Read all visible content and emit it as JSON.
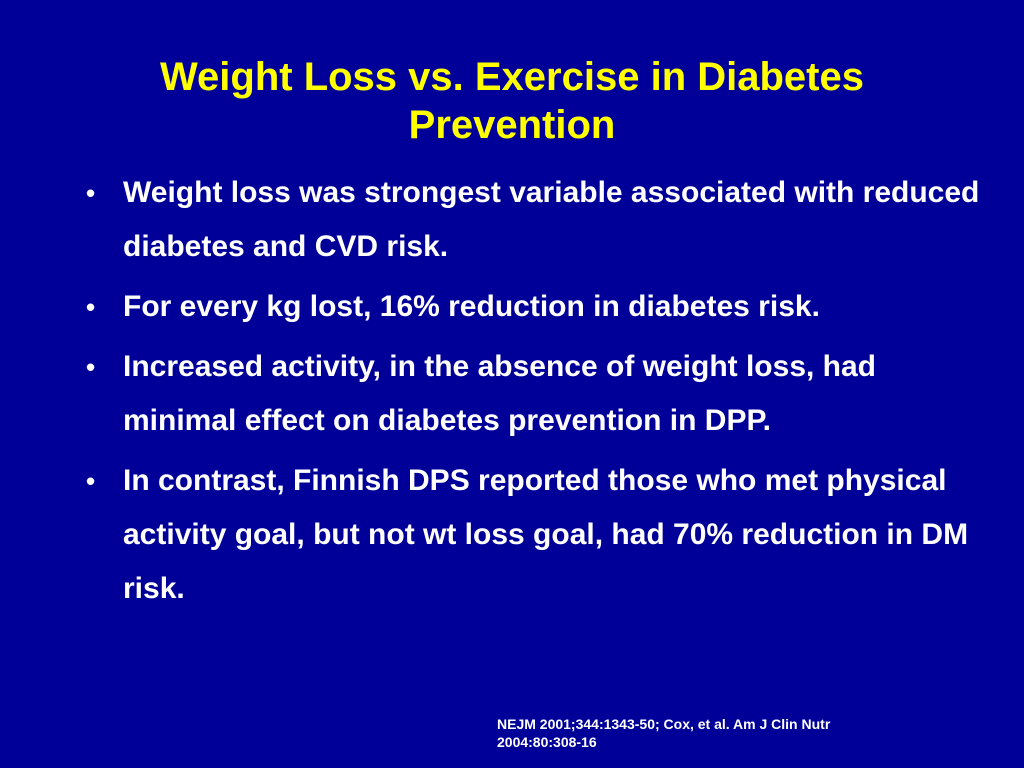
{
  "slide": {
    "title_lines": [
      "Weight Loss vs. Exercise in Diabetes",
      "Prevention"
    ],
    "bullet_glyph": "•",
    "bullets": [
      "Weight loss was strongest variable associated with reduced diabetes and CVD risk.",
      "For every kg lost, 16% reduction in diabetes risk.",
      "Increased activity, in the absence of weight loss, had minimal effect on diabetes prevention in DPP.",
      "In contrast, Finnish DPS reported those who met physical activity goal, but not wt loss goal, had 70% reduction in DM risk."
    ],
    "citation_lines": [
      "NEJM 2001;344:1343-50; Cox, et al.  Am J Clin Nutr",
      "2004:80:308-16"
    ],
    "colors": {
      "background": "#000099",
      "title": "#ffff00",
      "body_text": "#ffffff"
    }
  }
}
